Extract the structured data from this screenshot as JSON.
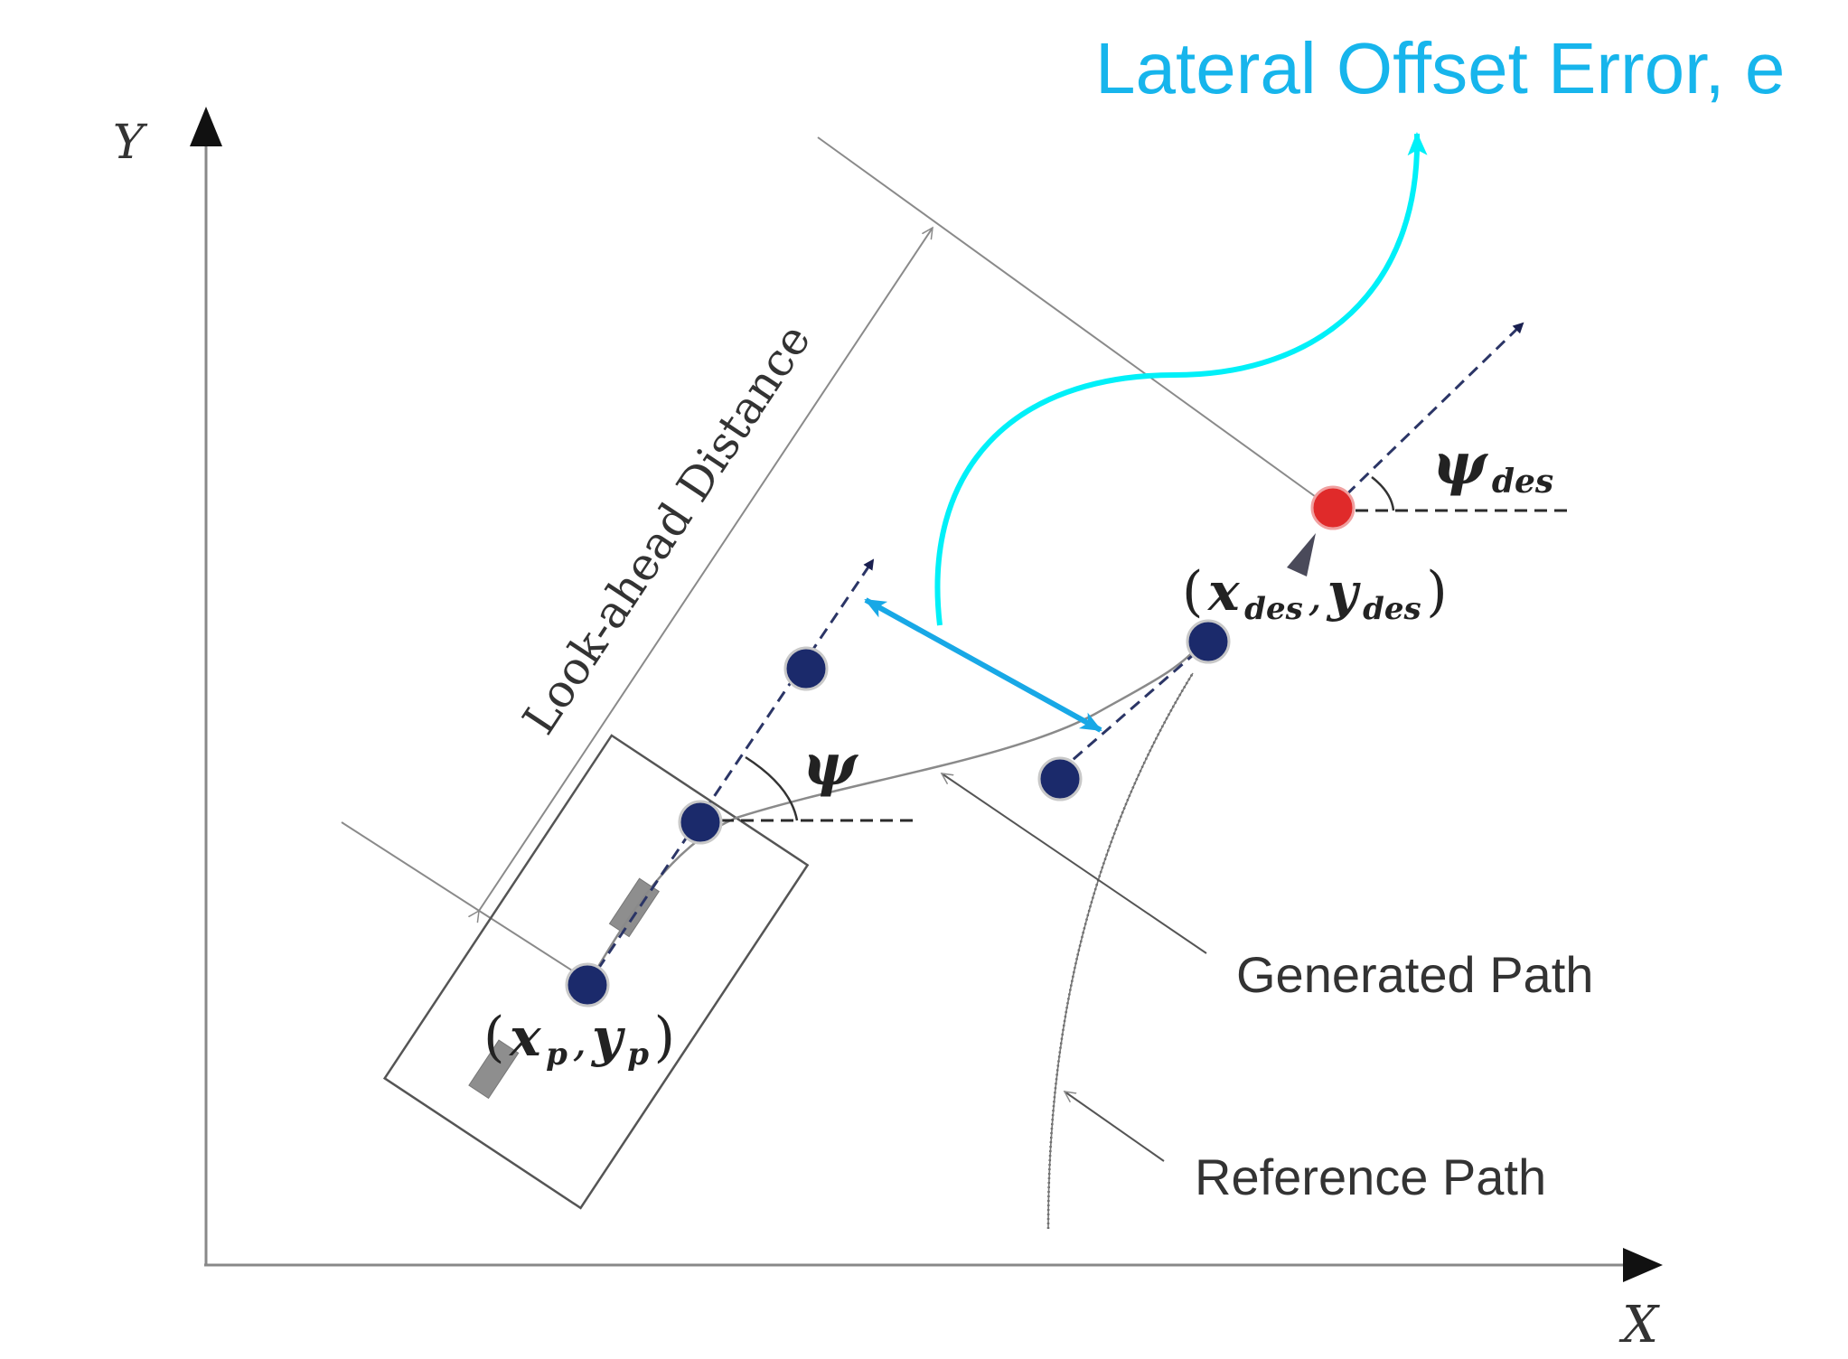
{
  "title": "Lateral Offset Error, e",
  "axes": {
    "x_label": "X",
    "y_label": "Y"
  },
  "labels": {
    "look_ahead": "Look-ahead Distance",
    "generated_path": "Generated Path",
    "reference_path": "Reference Path",
    "psi": "ψ",
    "psi_des_base": "ψ",
    "psi_des_sub": "des",
    "vehicle_point_x": "x",
    "vehicle_point_y": "y",
    "vehicle_point_sub": "p",
    "desired_point_x": "x",
    "desired_point_y": "y",
    "desired_point_sub": "des",
    "open_paren": "(",
    "close_paren": ")",
    "comma": ","
  },
  "colors": {
    "title": "#17b5ec",
    "cyan_curve": "#00f0f8",
    "error_arrow": "#18a8e6",
    "point": "#1b2a6b",
    "desired_point": "#e02a2a",
    "line": "#8a8a8a",
    "axis": "#888888",
    "dashed": "#2b2b2b",
    "text": "#333333"
  }
}
